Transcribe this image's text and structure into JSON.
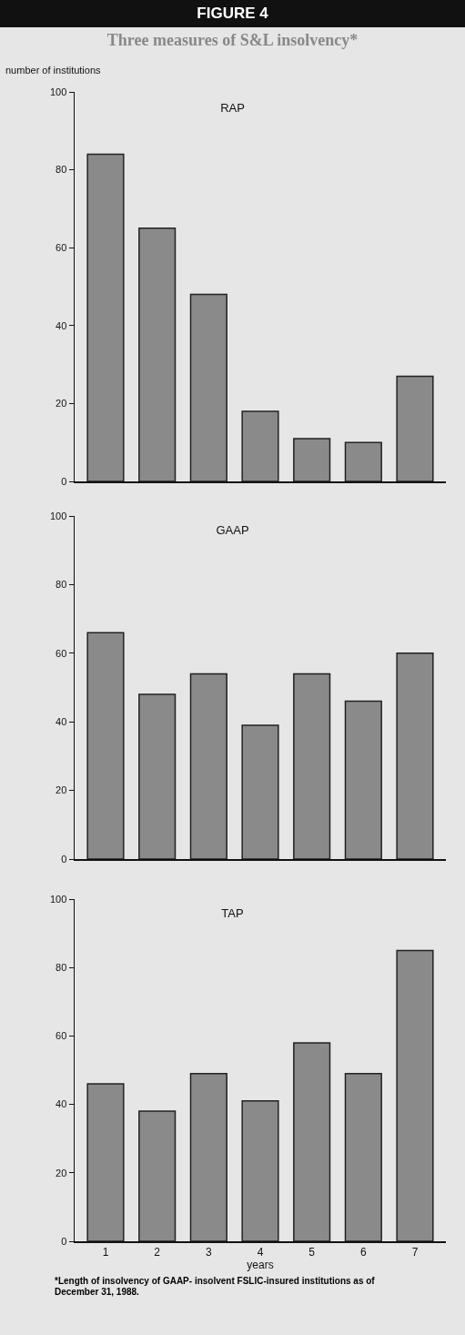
{
  "chart_data": [
    {
      "type": "bar",
      "title": "RAP",
      "ylabel": "number of institutions",
      "categories": [
        "1",
        "2",
        "3",
        "4",
        "5",
        "6",
        "7"
      ],
      "values": [
        84,
        65,
        48,
        18,
        11,
        10,
        27
      ],
      "color": "#8a8a8a",
      "ylim": [
        0,
        100
      ],
      "yticks": [
        0,
        20,
        40,
        60,
        80,
        100
      ],
      "grid": false,
      "tick_labels": "y",
      "annotations": [
        "FIGURE 4",
        "Three measures of S&L insolvency*"
      ]
    },
    {
      "type": "bar",
      "title": "GAAP",
      "categories": [
        "1",
        "2",
        "3",
        "4",
        "5",
        "6",
        "7"
      ],
      "values": [
        66,
        48,
        54,
        39,
        54,
        46,
        60
      ],
      "color": "#8a8a8a",
      "ylim": [
        0,
        100
      ],
      "yticks": [
        0,
        20,
        40,
        60,
        80,
        100
      ],
      "grid": false,
      "tick_labels": "y"
    },
    {
      "type": "bar",
      "title": "TAP",
      "xlabel": "years",
      "categories": [
        "1",
        "2",
        "3",
        "4",
        "5",
        "6",
        "7"
      ],
      "values": [
        46,
        38,
        49,
        41,
        58,
        49,
        85
      ],
      "color": "#8a8a8a",
      "ylim": [
        0,
        100
      ],
      "yticks": [
        0,
        20,
        40,
        60,
        80,
        100
      ],
      "grid": false,
      "annotations": [
        "*Length of insolvency of GAAP- insolvent FSLIC-insured institutions as of December 31, 1988."
      ]
    }
  ]
}
